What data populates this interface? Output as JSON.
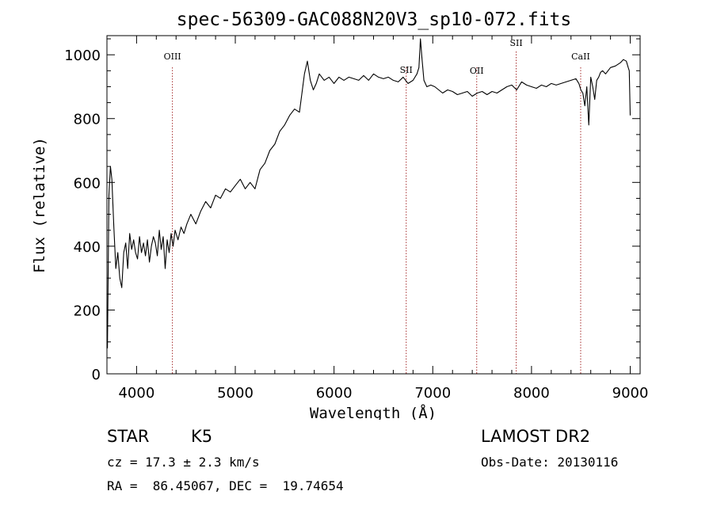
{
  "chart_data": {
    "type": "line",
    "title": "spec-56309-GAC088N20V3_sp10-072.fits",
    "xlabel": "Wavelength (Å)",
    "ylabel": "Flux (relative)",
    "xlim": [
      3700,
      9100
    ],
    "ylim": [
      0,
      1060
    ],
    "x_ticks": [
      4000,
      5000,
      6000,
      7000,
      8000,
      9000
    ],
    "y_ticks": [
      0,
      200,
      400,
      600,
      800,
      1000
    ],
    "x_tick_labels": [
      "4000",
      "5000",
      "6000",
      "7000",
      "8000",
      "9000"
    ],
    "y_tick_labels": [
      "0",
      "200",
      "400",
      "600",
      "800",
      "1000"
    ],
    "series": [
      {
        "name": "flux",
        "x": [
          3705,
          3720,
          3735,
          3750,
          3770,
          3790,
          3810,
          3830,
          3850,
          3870,
          3890,
          3910,
          3930,
          3950,
          3970,
          3990,
          4010,
          4030,
          4050,
          4070,
          4090,
          4110,
          4130,
          4150,
          4170,
          4190,
          4210,
          4230,
          4250,
          4270,
          4290,
          4310,
          4330,
          4350,
          4370,
          4390,
          4420,
          4450,
          4480,
          4510,
          4550,
          4600,
          4650,
          4700,
          4750,
          4800,
          4850,
          4900,
          4950,
          5000,
          5050,
          5100,
          5150,
          5200,
          5250,
          5300,
          5350,
          5400,
          5450,
          5500,
          5550,
          5600,
          5650,
          5700,
          5730,
          5760,
          5790,
          5820,
          5850,
          5900,
          5950,
          6000,
          6050,
          6100,
          6150,
          6200,
          6250,
          6300,
          6350,
          6400,
          6450,
          6500,
          6550,
          6600,
          6650,
          6700,
          6750,
          6800,
          6840,
          6860,
          6875,
          6890,
          6910,
          6940,
          6980,
          7020,
          7060,
          7100,
          7150,
          7200,
          7250,
          7300,
          7350,
          7400,
          7450,
          7500,
          7550,
          7600,
          7650,
          7700,
          7750,
          7800,
          7850,
          7900,
          7950,
          8000,
          8050,
          8100,
          8150,
          8200,
          8250,
          8300,
          8350,
          8400,
          8450,
          8480,
          8500,
          8520,
          8540,
          8560,
          8580,
          8600,
          8620,
          8640,
          8660,
          8680,
          8700,
          8720,
          8750,
          8800,
          8850,
          8900,
          8930,
          8960,
          8980,
          8990,
          9000
        ],
        "values": [
          80,
          560,
          650,
          610,
          460,
          330,
          380,
          300,
          270,
          380,
          410,
          330,
          440,
          390,
          420,
          380,
          360,
          430,
          380,
          410,
          370,
          420,
          350,
          400,
          430,
          410,
          370,
          450,
          390,
          430,
          330,
          420,
          380,
          440,
          400,
          450,
          420,
          460,
          440,
          470,
          500,
          470,
          510,
          540,
          520,
          560,
          550,
          580,
          570,
          590,
          610,
          580,
          600,
          580,
          640,
          660,
          700,
          720,
          760,
          780,
          810,
          830,
          820,
          940,
          980,
          920,
          890,
          910,
          940,
          920,
          930,
          910,
          930,
          920,
          930,
          925,
          920,
          935,
          920,
          940,
          930,
          925,
          930,
          920,
          915,
          930,
          910,
          920,
          940,
          960,
          1050,
          990,
          920,
          900,
          905,
          900,
          890,
          880,
          890,
          885,
          875,
          880,
          885,
          870,
          880,
          885,
          875,
          885,
          880,
          890,
          900,
          905,
          890,
          915,
          905,
          900,
          895,
          905,
          900,
          910,
          905,
          910,
          915,
          920,
          925,
          910,
          890,
          880,
          840,
          900,
          780,
          930,
          900,
          860,
          920,
          930,
          945,
          950,
          940,
          960,
          965,
          975,
          985,
          980,
          960,
          950,
          810
        ]
      }
    ],
    "spectral_lines": [
      {
        "name": "OIII",
        "x": 4363
      },
      {
        "name": "SII",
        "x": 6731
      },
      {
        "name": "OII",
        "x": 7445
      },
      {
        "name": "SII",
        "x": 7845
      },
      {
        "name": "CaII",
        "x": 8498
      }
    ]
  },
  "info": {
    "object_class": "STAR",
    "subclass": "K5",
    "survey": "LAMOST DR2",
    "redshift": "cz = 17.3 ± 2.3 km/s",
    "obs_date": "Obs-Date: 20130116",
    "coords": "RA =  86.45067, DEC =  19.74654"
  },
  "colors": {
    "line": "#000000",
    "marker": "#a52a2a",
    "background": "#ffffff"
  }
}
